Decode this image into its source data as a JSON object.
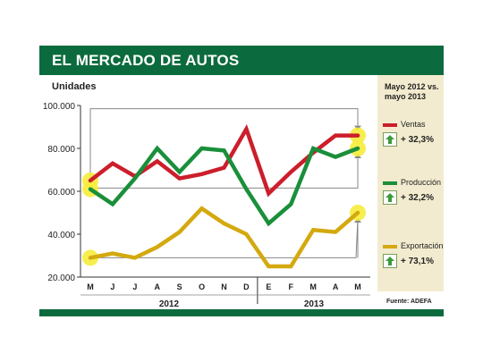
{
  "header": {
    "title": "EL MERCADO DE AUTOS"
  },
  "source": "Fuente: ADEFA",
  "compare": {
    "title": "Mayo 2012 vs. mayo 2013",
    "items": [
      {
        "name": "Ventas",
        "change": "+ 32,3%",
        "color": "#cc1e2b"
      },
      {
        "name": "Producción",
        "change": "+ 32,2%",
        "color": "#1a8f3a"
      },
      {
        "name": "Exportación",
        "change": "+ 73,1%",
        "color": "#d4a90f"
      }
    ]
  },
  "chart_data": {
    "type": "line",
    "title": "EL MERCADO DE AUTOS",
    "ylabel": "Unidades",
    "ylim": [
      20000,
      100000
    ],
    "yticks": [
      "100.000",
      "80.000",
      "60.000",
      "40.000",
      "20.000"
    ],
    "ytick_values": [
      100000,
      80000,
      60000,
      40000,
      20000
    ],
    "categories": [
      "M",
      "J",
      "J",
      "A",
      "S",
      "O",
      "N",
      "D",
      "E",
      "F",
      "M",
      "A",
      "M"
    ],
    "year_groups": [
      "2012",
      "2013"
    ],
    "series": [
      {
        "name": "Ventas",
        "color": "#cc1e2b",
        "values": [
          65000,
          73000,
          67000,
          74000,
          66000,
          68000,
          71000,
          89000,
          59000,
          69000,
          78000,
          86000,
          86000
        ]
      },
      {
        "name": "Producción",
        "color": "#1a8f3a",
        "values": [
          61000,
          54000,
          66000,
          80000,
          69000,
          80000,
          79000,
          61000,
          45000,
          54000,
          80000,
          76000,
          80000
        ]
      },
      {
        "name": "Exportación",
        "color": "#d4a90f",
        "values": [
          29000,
          31000,
          29000,
          34000,
          41000,
          52000,
          45000,
          40000,
          25000,
          25000,
          42000,
          41000,
          50000
        ]
      }
    ],
    "highlight_points": [
      0,
      12
    ]
  }
}
